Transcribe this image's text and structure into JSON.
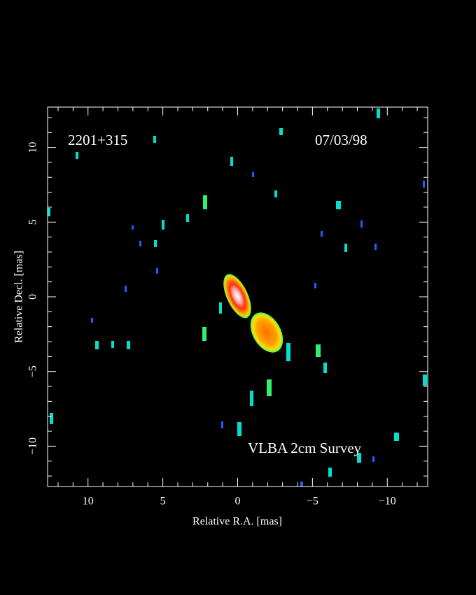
{
  "chart_data": {
    "type": "image",
    "annotations": [
      "2201+315",
      "07/03/98",
      "VLBA 2cm Survey"
    ],
    "xlabel": "Relative R.A. [mas]",
    "ylabel": "Relative Decl. [mas]",
    "xlim": [
      12.7,
      -12.7
    ],
    "ylim": [
      -12.7,
      12.7
    ],
    "xticks": [
      10,
      5,
      0,
      {
        "value": -5,
        "label": "−5"
      },
      {
        "value": -10,
        "label": "−10"
      }
    ],
    "yticks": [
      {
        "value": -10,
        "label": "−10"
      },
      {
        "value": -5,
        "label": "−5"
      },
      0,
      5,
      10
    ],
    "xminorticks": [
      12,
      11,
      9,
      8,
      7,
      6,
      4,
      3,
      2,
      1,
      -1,
      -2,
      -3,
      -4,
      -6,
      -7,
      -8,
      -9,
      -11,
      -12
    ],
    "yminorticks": [
      -12,
      -11,
      -9,
      -8,
      -7,
      -6,
      -4,
      -3,
      -2,
      -1,
      1,
      2,
      3,
      4,
      6,
      7,
      8,
      9,
      11,
      12
    ],
    "color": "#ffffff"
  }
}
